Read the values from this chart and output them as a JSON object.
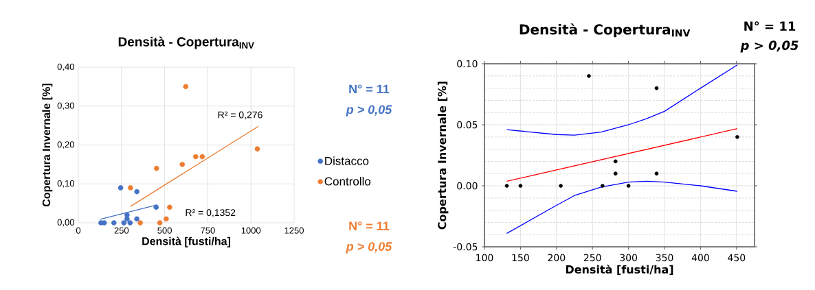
{
  "chart_data": [
    {
      "type": "scatter",
      "title": "Densità - Copertura$_{INV}$",
      "xlabel": "Densità [fusti/ha]",
      "ylabel": "Copertura Invernale [%]",
      "xlim": [
        0,
        1250
      ],
      "ylim": [
        0,
        0.4
      ],
      "xticks": [
        0,
        250,
        500,
        750,
        1000,
        1250
      ],
      "yticks": [
        {
          "value": 0,
          "label": "0,00"
        },
        {
          "value": 0.1,
          "label": "0,10"
        },
        {
          "value": 0.2,
          "label": "0,20"
        },
        {
          "value": 0.3,
          "label": "0,30"
        },
        {
          "value": 0.4,
          "label": "0,40"
        }
      ],
      "grid": true,
      "legend": "right",
      "series": [
        {
          "name": "Distacco",
          "marker": "circle",
          "color": "#4472c4",
          "x": [
            131,
            150,
            206,
            245,
            264,
            282,
            282,
            300,
            339,
            339,
            451
          ],
          "values": [
            0,
            0,
            0,
            0.09,
            0,
            0.02,
            0.01,
            0,
            0.08,
            0.01,
            0.04
          ]
        },
        {
          "name": "Controllo",
          "marker": "circle",
          "color": "#ed7d31",
          "x": [
            302,
            359,
            453,
            472,
            509,
            529,
            602,
            622,
            680,
            718,
            1037
          ],
          "values": [
            0.09,
            0,
            0.14,
            0,
            0.01,
            0.04,
            0.15,
            0.35,
            0.17,
            0.17,
            0.19
          ]
        },
        {
          "type": "line",
          "marker": "none",
          "color": "#4472c4",
          "x": [
            127,
            455
          ],
          "values": [
            0.009,
            0.046
          ]
        },
        {
          "type": "line",
          "marker": "none",
          "color": "#ed7d31",
          "x": [
            302,
            1043
          ],
          "values": [
            0.042,
            0.248
          ]
        }
      ],
      "annotations": [
        "R² = 0,276",
        "R² = 0,1352",
        "N° = 11",
        "p > 0,05",
        "N° = 11",
        "p > 0,05"
      ]
    },
    {
      "type": "scatter",
      "title": "Densità - Copertura$_{INV}$",
      "xlabel": "Densità [fusti/ha]",
      "ylabel": "Copertura Invernale [%]",
      "xlim": [
        100,
        475
      ],
      "ylim": [
        -0.05,
        0.1
      ],
      "xticks": [
        100,
        150,
        200,
        250,
        300,
        350,
        400,
        450
      ],
      "yticks": [
        {
          "value": -0.05,
          "label": "-0.05"
        },
        {
          "value": 0,
          "label": "0.00"
        },
        {
          "value": 0.05,
          "label": "0.05"
        },
        {
          "value": 0.1,
          "label": "0.10"
        }
      ],
      "grid": true,
      "series": [
        {
          "marker": "circle",
          "color": "#000000",
          "x": [
            131,
            150,
            206,
            245,
            264,
            282,
            282,
            300,
            339,
            339,
            451
          ],
          "values": [
            0,
            0,
            0,
            0.09,
            0,
            0.02,
            0.01,
            0,
            0.08,
            0.01,
            0.04
          ]
        },
        {
          "type": "line",
          "marker": "none",
          "color": "#ff0000",
          "x": [
            131,
            451
          ],
          "values": [
            0.0037,
            0.0468
          ]
        },
        {
          "type": "line",
          "marker": "none",
          "color": "#0000ff",
          "x": [
            131,
            200,
            225,
            262,
            300,
            325,
            350,
            400,
            451
          ],
          "values": [
            0.046,
            0.042,
            0.0415,
            0.044,
            0.05,
            0.055,
            0.061,
            0.08,
            0.099
          ]
        },
        {
          "type": "line",
          "marker": "none",
          "color": "#0000ff",
          "x": [
            131,
            200,
            225,
            262,
            300,
            325,
            350,
            400,
            451
          ],
          "values": [
            -0.039,
            -0.016,
            -0.008,
            -0.001,
            0.003,
            0.0037,
            0.003,
            0,
            -0.0045
          ]
        }
      ],
      "annotations": [
        "N° = 11",
        "p > 0,05"
      ]
    }
  ]
}
